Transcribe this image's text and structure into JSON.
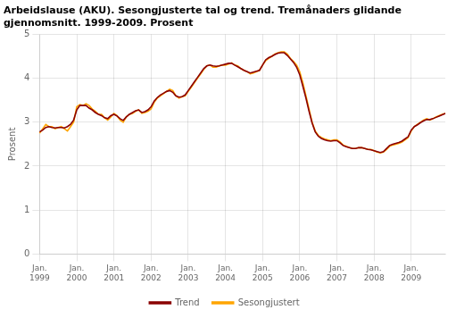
{
  "chart_data": {
    "type": "line",
    "title": [
      "Arbeidslause (AKU). Sesongjusterte tal og trend. Tremånaders glidande",
      "gjennomsnitt. 1999-2009. Prosent"
    ],
    "y_label": "Prosent",
    "categories": [
      "Jan.\n1999",
      null,
      null,
      null,
      null,
      null,
      null,
      null,
      null,
      null,
      null,
      null,
      "Jan.\n2000",
      null,
      null,
      null,
      null,
      null,
      null,
      null,
      null,
      null,
      null,
      null,
      "Jan.\n2001",
      null,
      null,
      null,
      null,
      null,
      null,
      null,
      null,
      null,
      null,
      null,
      "Jan.\n2002",
      null,
      null,
      null,
      null,
      null,
      null,
      null,
      null,
      null,
      null,
      null,
      "Jan.\n2003",
      null,
      null,
      null,
      null,
      null,
      null,
      null,
      null,
      null,
      null,
      null,
      "Jan.\n2004",
      null,
      null,
      null,
      null,
      null,
      null,
      null,
      null,
      null,
      null,
      null,
      "Jan.\n2005",
      null,
      null,
      null,
      null,
      null,
      null,
      null,
      null,
      null,
      null,
      null,
      "Jan.\n2006",
      null,
      null,
      null,
      null,
      null,
      null,
      null,
      null,
      null,
      null,
      null,
      "Jan.\n2007",
      null,
      null,
      null,
      null,
      null,
      null,
      null,
      null,
      null,
      null,
      null,
      "Jan.\n2008",
      null,
      null,
      null,
      null,
      null,
      null,
      null,
      null,
      null,
      null,
      null,
      "Jan.\n2009",
      null,
      null,
      null,
      null,
      null,
      null,
      null,
      null,
      null,
      null,
      null
    ],
    "series": [
      {
        "name": "Sesongjustert",
        "color": "#FFA500",
        "values": [
          2.75,
          2.85,
          2.95,
          2.9,
          2.9,
          2.85,
          2.88,
          2.9,
          2.85,
          2.8,
          2.9,
          3.0,
          3.35,
          3.4,
          3.38,
          3.42,
          3.38,
          3.3,
          3.25,
          3.18,
          3.18,
          3.1,
          3.05,
          3.12,
          3.2,
          3.15,
          3.05,
          3.0,
          3.12,
          3.18,
          3.2,
          3.25,
          3.28,
          3.2,
          3.22,
          3.25,
          3.3,
          3.45,
          3.55,
          3.6,
          3.65,
          3.7,
          3.75,
          3.72,
          3.6,
          3.55,
          3.58,
          3.6,
          3.7,
          3.8,
          3.9,
          4.0,
          4.1,
          4.2,
          4.28,
          4.3,
          4.25,
          4.25,
          4.28,
          4.3,
          4.3,
          4.32,
          4.35,
          4.3,
          4.28,
          4.22,
          4.18,
          4.15,
          4.1,
          4.12,
          4.15,
          4.18,
          4.3,
          4.4,
          4.45,
          4.5,
          4.55,
          4.58,
          4.6,
          4.6,
          4.55,
          4.45,
          4.38,
          4.3,
          4.15,
          3.9,
          3.6,
          3.3,
          3.0,
          2.8,
          2.7,
          2.65,
          2.62,
          2.6,
          2.58,
          2.6,
          2.6,
          2.55,
          2.48,
          2.45,
          2.42,
          2.4,
          2.4,
          2.42,
          2.42,
          2.4,
          2.38,
          2.38,
          2.35,
          2.32,
          2.3,
          2.32,
          2.38,
          2.45,
          2.48,
          2.5,
          2.52,
          2.55,
          2.6,
          2.65,
          2.8,
          2.9,
          2.95,
          3.0,
          3.05,
          3.08,
          3.05,
          3.08,
          3.12,
          3.15,
          3.18,
          3.2
        ]
      },
      {
        "name": "Trend",
        "color": "#8B0000",
        "values": [
          2.78,
          2.82,
          2.88,
          2.9,
          2.88,
          2.87,
          2.88,
          2.88,
          2.87,
          2.9,
          2.95,
          3.05,
          3.28,
          3.38,
          3.38,
          3.38,
          3.32,
          3.28,
          3.22,
          3.18,
          3.15,
          3.1,
          3.08,
          3.15,
          3.18,
          3.14,
          3.08,
          3.04,
          3.12,
          3.18,
          3.22,
          3.26,
          3.28,
          3.22,
          3.24,
          3.28,
          3.35,
          3.48,
          3.56,
          3.62,
          3.66,
          3.7,
          3.72,
          3.68,
          3.6,
          3.57,
          3.58,
          3.62,
          3.72,
          3.82,
          3.92,
          4.02,
          4.12,
          4.22,
          4.28,
          4.3,
          4.28,
          4.27,
          4.28,
          4.3,
          4.32,
          4.34,
          4.34,
          4.3,
          4.26,
          4.22,
          4.18,
          4.15,
          4.12,
          4.14,
          4.16,
          4.18,
          4.3,
          4.42,
          4.47,
          4.5,
          4.54,
          4.57,
          4.58,
          4.58,
          4.52,
          4.44,
          4.36,
          4.25,
          4.08,
          3.82,
          3.55,
          3.25,
          2.98,
          2.78,
          2.68,
          2.63,
          2.6,
          2.58,
          2.57,
          2.58,
          2.58,
          2.53,
          2.47,
          2.44,
          2.42,
          2.4,
          2.4,
          2.42,
          2.42,
          2.4,
          2.38,
          2.37,
          2.35,
          2.33,
          2.31,
          2.33,
          2.4,
          2.47,
          2.5,
          2.52,
          2.54,
          2.57,
          2.62,
          2.67,
          2.82,
          2.9,
          2.94,
          2.99,
          3.03,
          3.06,
          3.06,
          3.08,
          3.11,
          3.14,
          3.17,
          3.2
        ]
      }
    ],
    "ylim": [
      0,
      5
    ],
    "yticks": [
      0,
      1,
      2,
      3,
      4,
      5
    ],
    "grid": true,
    "legend": "bottom"
  }
}
